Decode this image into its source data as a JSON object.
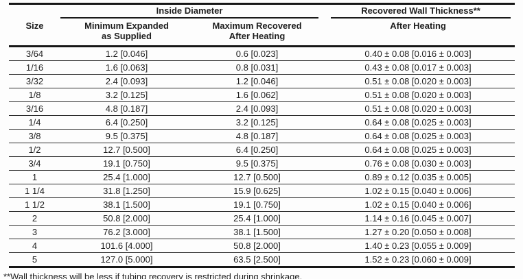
{
  "page": {
    "background_color": "#fdfdfd",
    "text_color": "#1e1e1e",
    "rule_color": "#161616"
  },
  "table": {
    "group_headers": {
      "inside_diameter": "Inside Diameter",
      "recovered_wall_thickness": "Recovered Wall Thickness**"
    },
    "column_headers": {
      "size": "Size",
      "min_expanded_line1": "Minimum Expanded",
      "min_expanded_line2": "as Supplied",
      "max_recovered_line1": "Maximum Recovered",
      "max_recovered_line2": "After Heating",
      "wall_after_heating": "After Heating"
    },
    "rows": [
      {
        "size": "3/64",
        "min_expanded": "1.2 [0.046]",
        "max_recovered": "0.6 [0.023]",
        "wall_thickness": "0.40 ± 0.08 [0.016 ± 0.003]"
      },
      {
        "size": "1/16",
        "min_expanded": "1.6 [0.063]",
        "max_recovered": "0.8 [0.031]",
        "wall_thickness": "0.43 ± 0.08 [0.017 ± 0.003]"
      },
      {
        "size": "3/32",
        "min_expanded": "2.4 [0.093]",
        "max_recovered": "1.2 [0.046]",
        "wall_thickness": "0.51 ± 0.08 [0.020 ± 0.003]"
      },
      {
        "size": "1/8",
        "min_expanded": "3.2 [0.125]",
        "max_recovered": "1.6 [0.062]",
        "wall_thickness": "0.51 ± 0.08 [0.020 ± 0.003]"
      },
      {
        "size": "3/16",
        "min_expanded": "4.8 [0.187]",
        "max_recovered": "2.4 [0.093]",
        "wall_thickness": "0.51 ± 0.08 [0.020 ± 0.003]"
      },
      {
        "size": "1/4",
        "min_expanded": "6.4 [0.250]",
        "max_recovered": "3.2 [0.125]",
        "wall_thickness": "0.64 ± 0.08 [0.025 ± 0.003]"
      },
      {
        "size": "3/8",
        "min_expanded": "9.5 [0.375]",
        "max_recovered": "4.8 [0.187]",
        "wall_thickness": "0.64 ± 0.08 [0.025 ± 0.003]"
      },
      {
        "size": "1/2",
        "min_expanded": "12.7 [0.500]",
        "max_recovered": "6.4 [0.250]",
        "wall_thickness": "0.64 ± 0.08 [0.025 ± 0.003]"
      },
      {
        "size": "3/4",
        "min_expanded": "19.1 [0.750]",
        "max_recovered": "9.5 [0.375]",
        "wall_thickness": "0.76 ± 0.08 [0.030 ± 0.003]"
      },
      {
        "size": "1",
        "min_expanded": "25.4 [1.000]",
        "max_recovered": "12.7 [0.500]",
        "wall_thickness": "0.89 ± 0.12 [0.035 ± 0.005]"
      },
      {
        "size": "1 1/4",
        "min_expanded": "31.8 [1.250]",
        "max_recovered": "15.9 [0.625]",
        "wall_thickness": "1.02 ± 0.15 [0.040 ± 0.006]"
      },
      {
        "size": "1 1/2",
        "min_expanded": "38.1 [1.500]",
        "max_recovered": "19.1 [0.750]",
        "wall_thickness": "1.02 ± 0.15 [0.040 ± 0.006]"
      },
      {
        "size": "2",
        "min_expanded": "50.8 [2.000]",
        "max_recovered": "25.4 [1.000]",
        "wall_thickness": "1.14 ± 0.16 [0.045 ± 0.007]"
      },
      {
        "size": "3",
        "min_expanded": "76.2 [3.000]",
        "max_recovered": "38.1 [1.500]",
        "wall_thickness": "1.27 ± 0.20 [0.050 ± 0.008]"
      },
      {
        "size": "4",
        "min_expanded": "101.6 [4.000]",
        "max_recovered": "50.8 [2.000]",
        "wall_thickness": "1.40 ± 0.23 [0.055 ± 0.009]"
      },
      {
        "size": "5",
        "min_expanded": "127.0 [5.000]",
        "max_recovered": "63.5 [2.500]",
        "wall_thickness": "1.52 ± 0.23 [0.060 ± 0.009]"
      }
    ],
    "footnote": "**Wall thickness will be less if tubing recovery is restricted during shrinkage."
  }
}
